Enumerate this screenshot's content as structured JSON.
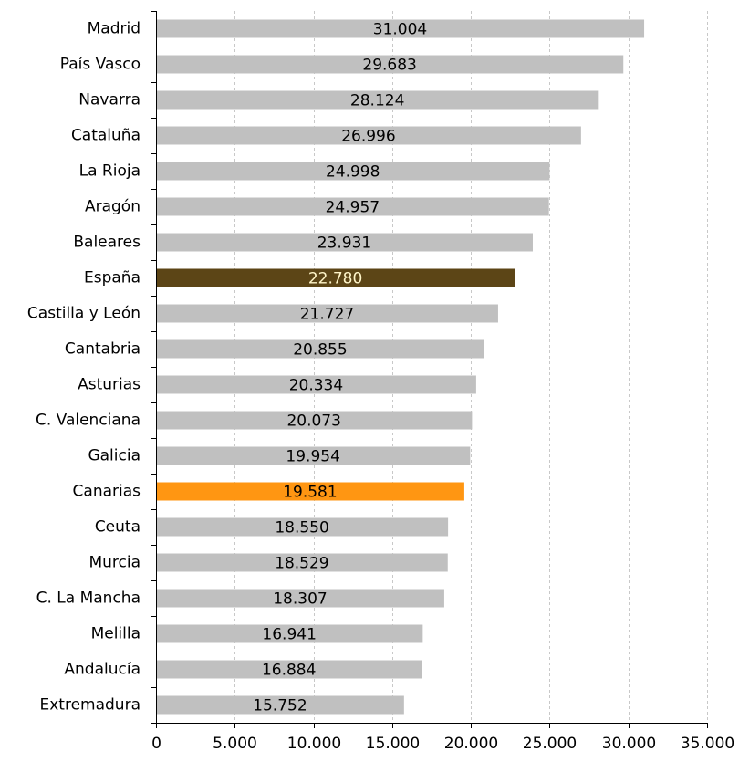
{
  "chart_data": {
    "type": "bar",
    "orientation": "horizontal",
    "categories": [
      "Madrid",
      "País Vasco",
      "Navarra",
      "Cataluña",
      "La Rioja",
      "Aragón",
      "Baleares",
      "España",
      "Castilla y León",
      "Cantabria",
      "Asturias",
      "C. Valenciana",
      "Galicia",
      "Canarias",
      "Ceuta",
      "Murcia",
      "C. La Mancha",
      "Melilla",
      "Andalucía",
      "Extremadura"
    ],
    "values": [
      31004,
      29683,
      28124,
      26996,
      24998,
      24957,
      23931,
      22780,
      21727,
      20855,
      20334,
      20073,
      19954,
      19581,
      18550,
      18529,
      18307,
      16941,
      16884,
      15752
    ],
    "value_labels": [
      "31.004",
      "29.683",
      "28.124",
      "26.996",
      "24.998",
      "24.957",
      "23.931",
      "22.780",
      "21.727",
      "20.855",
      "20.334",
      "20.073",
      "19.954",
      "19.581",
      "18.550",
      "18.529",
      "18.307",
      "16.941",
      "16.884",
      "15.752"
    ],
    "xlim": [
      0,
      35000
    ],
    "xticks": [
      0,
      5000,
      10000,
      15000,
      20000,
      25000,
      30000,
      35000
    ],
    "xtick_labels": [
      "0",
      "5.000",
      "10.000",
      "15.000",
      "20.000",
      "25.000",
      "30.000",
      "35.000"
    ],
    "grid": "vertical dashed",
    "title": "",
    "xlabel": "",
    "ylabel": "",
    "colors": {
      "default": "#c0c0c0",
      "España": "#5c4516",
      "Canarias": "#ff9612"
    },
    "label_colors": {
      "default": "#000000",
      "España": "#fff5c8"
    }
  }
}
